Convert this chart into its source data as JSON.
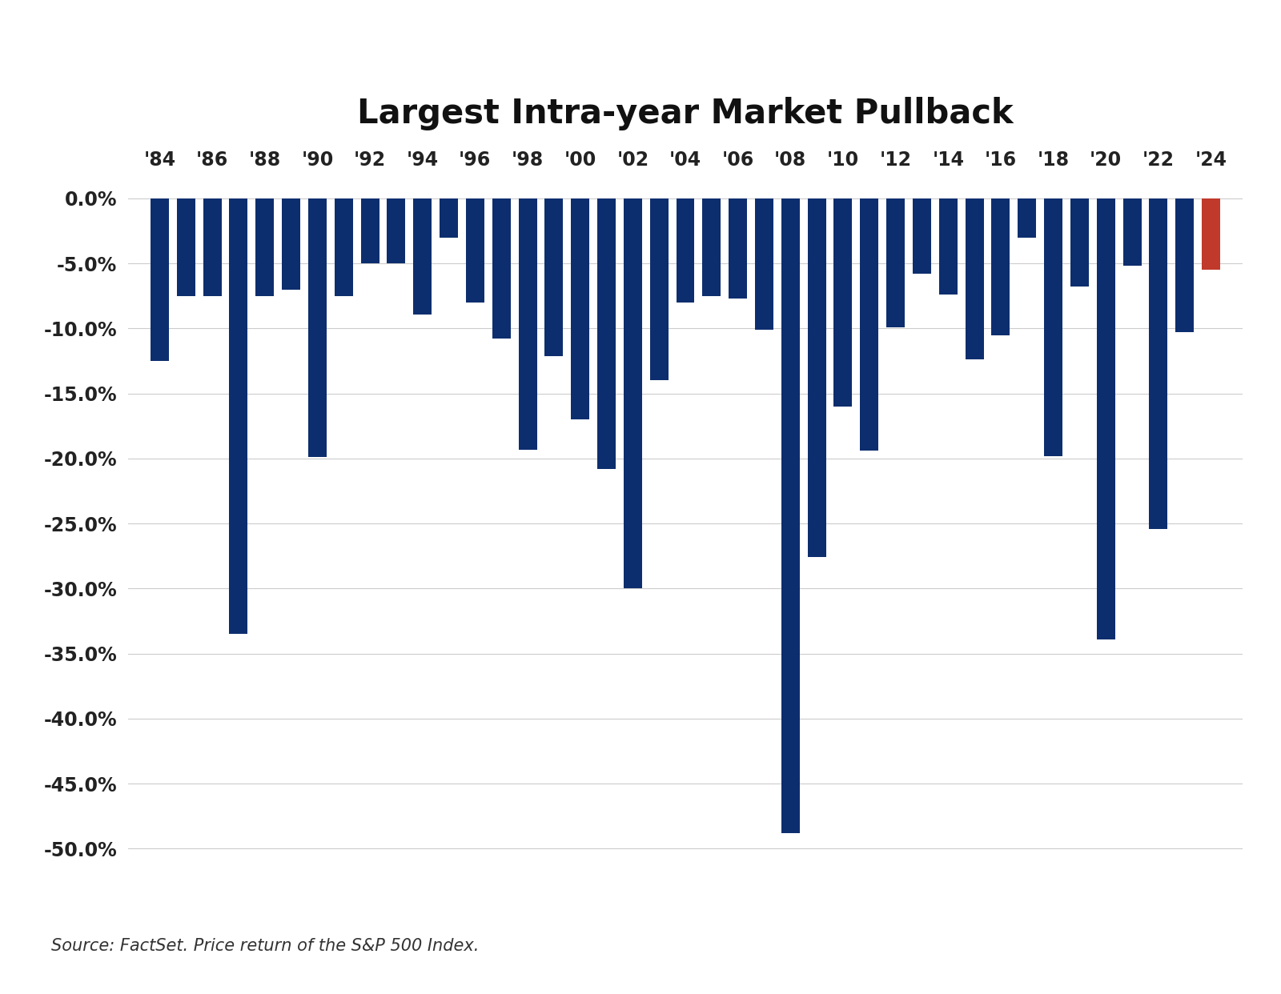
{
  "title": "Largest Intra-year Market Pullback",
  "years": [
    1984,
    1985,
    1986,
    1987,
    1988,
    1989,
    1990,
    1991,
    1992,
    1993,
    1994,
    1995,
    1996,
    1997,
    1998,
    1999,
    2000,
    2001,
    2002,
    2003,
    2004,
    2005,
    2006,
    2007,
    2008,
    2009,
    2010,
    2011,
    2012,
    2013,
    2014,
    2015,
    2016,
    2017,
    2018,
    2019,
    2020,
    2021,
    2022,
    2023,
    2024
  ],
  "values": [
    -12.5,
    -7.5,
    -7.5,
    -33.5,
    -7.5,
    -7.0,
    -19.9,
    -7.5,
    -5.0,
    -5.0,
    -8.9,
    -3.0,
    -8.0,
    -10.8,
    -19.3,
    -12.1,
    -17.0,
    -20.8,
    -30.0,
    -14.0,
    -8.0,
    -7.5,
    -7.7,
    -10.1,
    -48.8,
    -27.6,
    -16.0,
    -19.4,
    -9.9,
    -5.8,
    -7.4,
    -12.4,
    -10.5,
    -3.0,
    -19.8,
    -6.8,
    -33.9,
    -5.2,
    -25.4,
    -10.3,
    -5.5
  ],
  "bar_color_default": "#0d2e6e",
  "bar_color_highlight": "#c0392b",
  "highlight_year": 2024,
  "ylim": [
    -52,
    1.5
  ],
  "yticks": [
    0,
    -5,
    -10,
    -15,
    -20,
    -25,
    -30,
    -35,
    -40,
    -45,
    -50
  ],
  "x_tick_years": [
    1984,
    1986,
    1988,
    1990,
    1992,
    1994,
    1996,
    1998,
    2000,
    2002,
    2004,
    2006,
    2008,
    2010,
    2012,
    2014,
    2016,
    2018,
    2020,
    2022,
    2024
  ],
  "x_tick_labels": [
    "'84",
    "'86",
    "'88",
    "'90",
    "'92",
    "'94",
    "'96",
    "'98",
    "'00",
    "'02",
    "'04",
    "'06",
    "'08",
    "'10",
    "'12",
    "'14",
    "'16",
    "'18",
    "'20",
    "'22",
    "'24"
  ],
  "source_text": "Source: FactSet. Price return of the S&P 500 Index.",
  "background_color": "#ffffff",
  "title_fontsize": 30,
  "tick_fontsize": 17,
  "source_fontsize": 15
}
